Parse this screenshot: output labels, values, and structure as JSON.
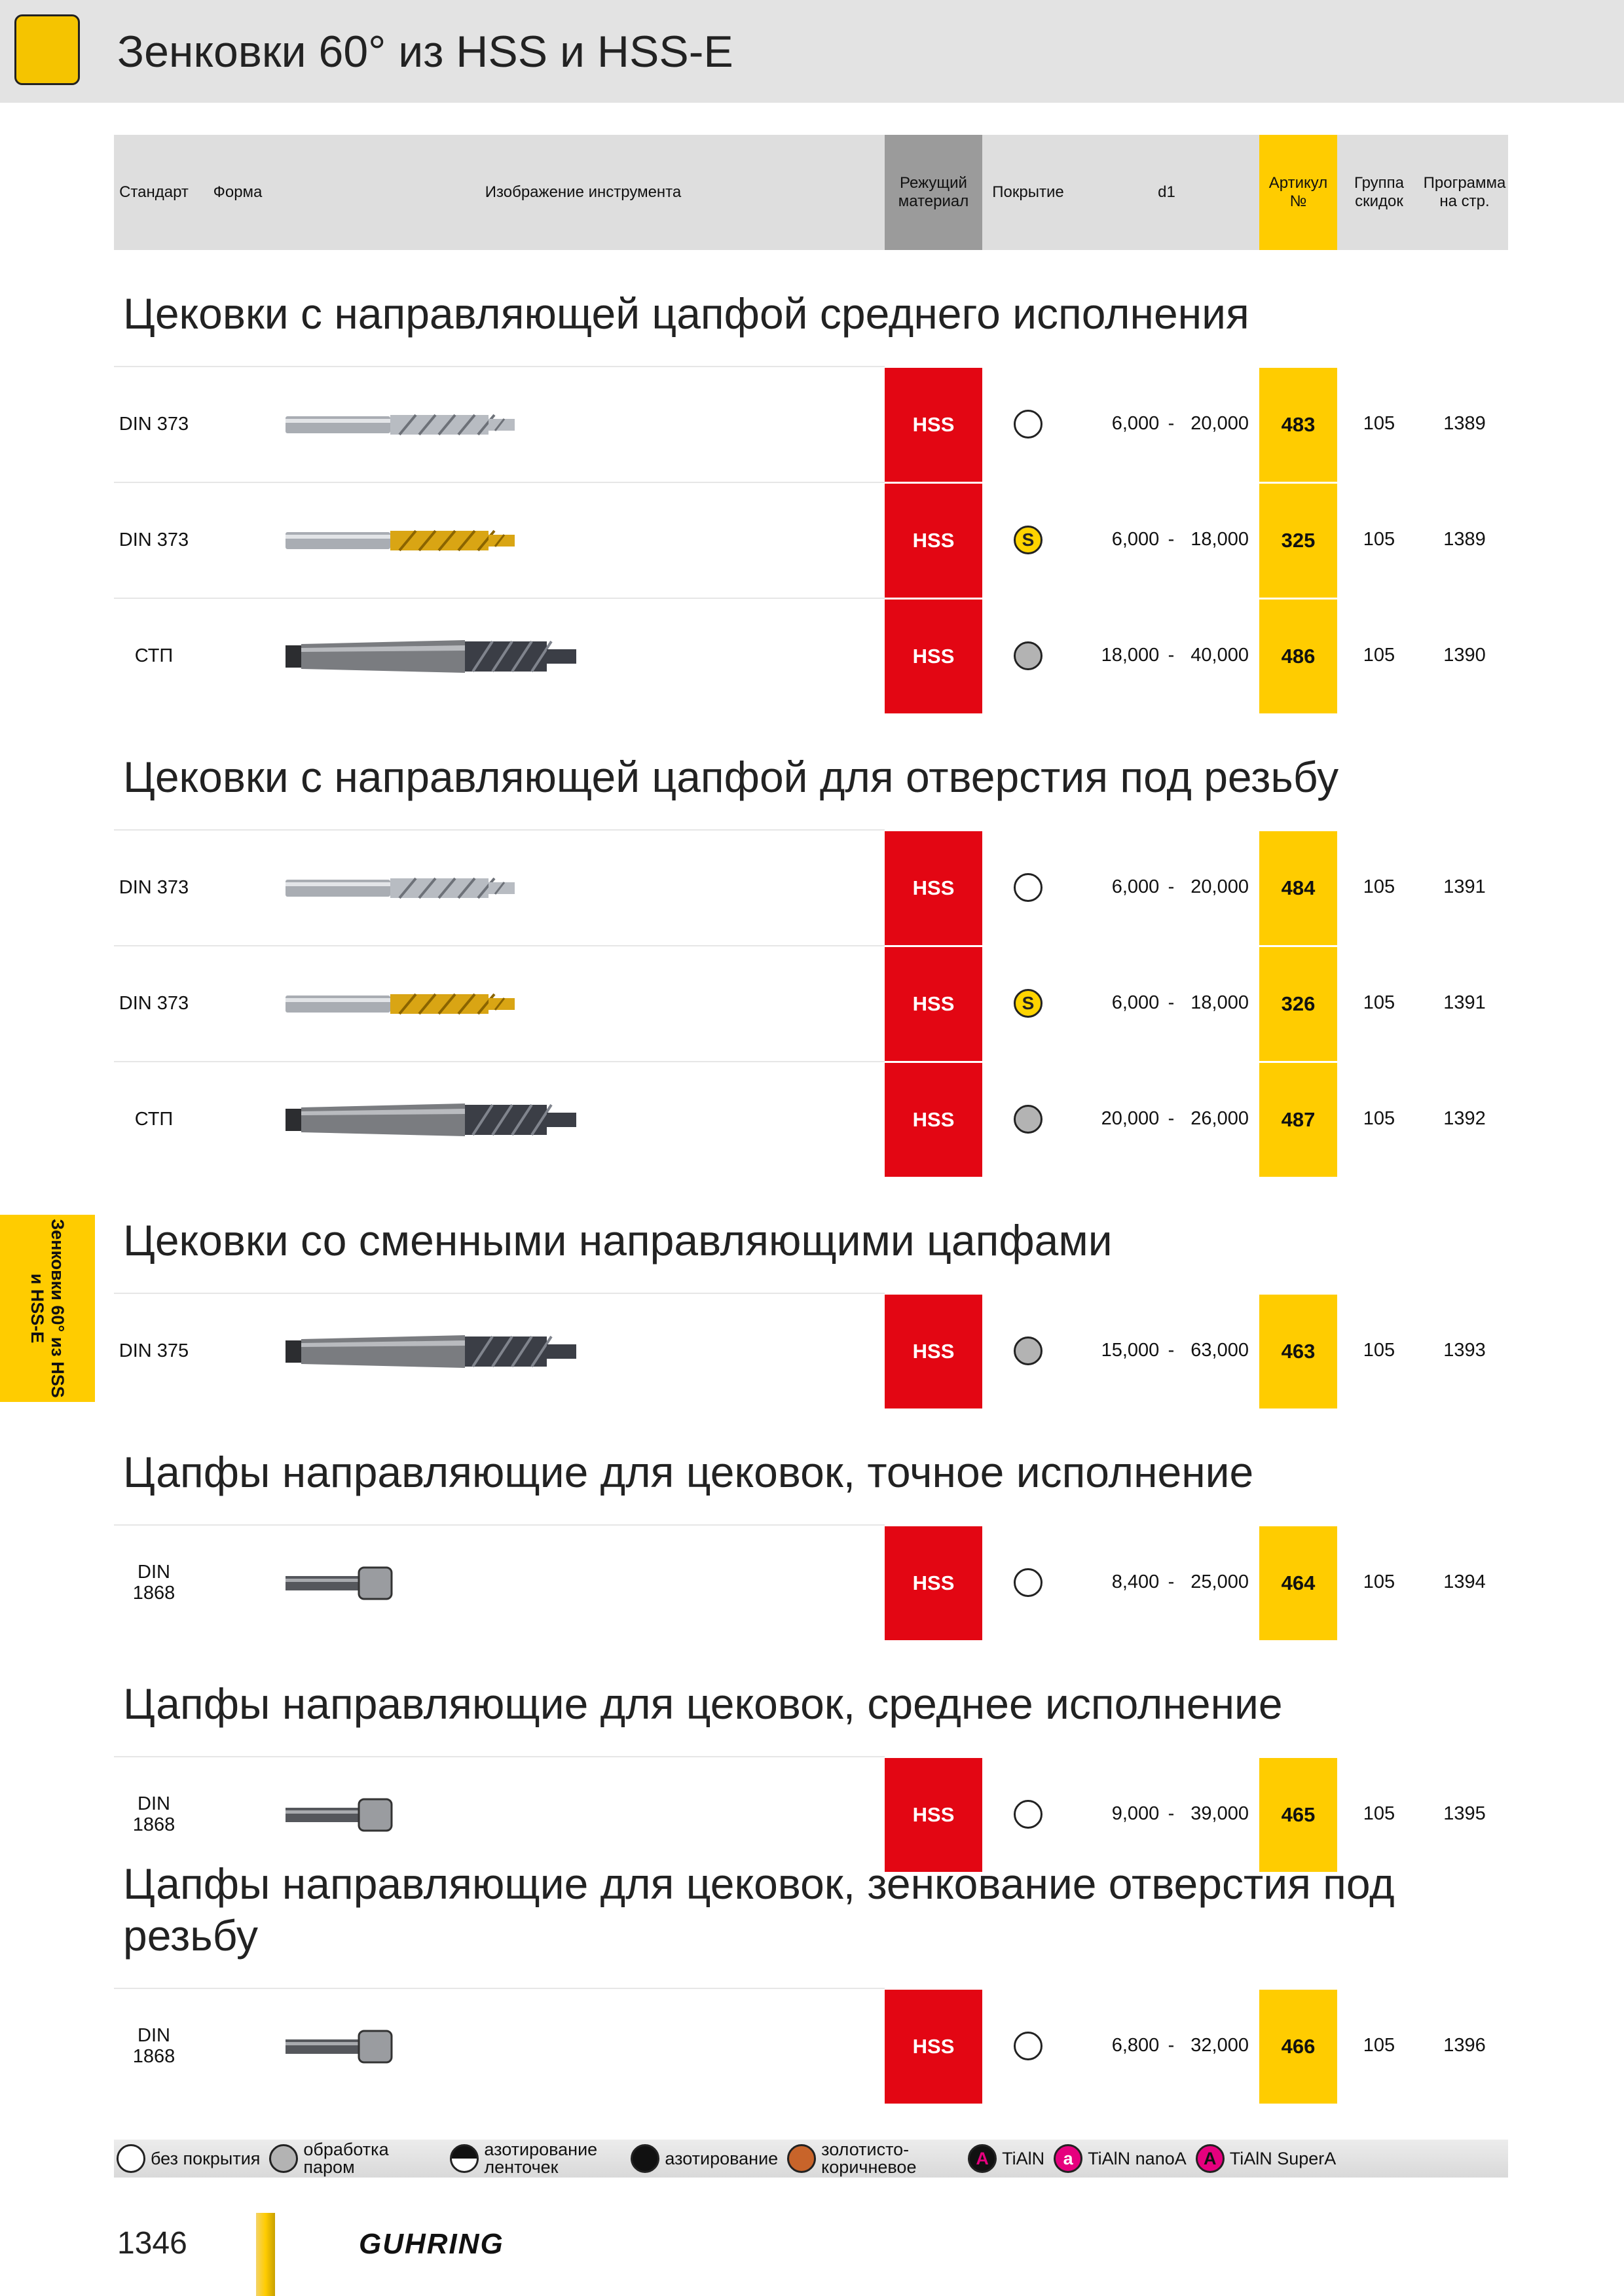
{
  "header": {
    "title": "Зенковки 60° из HSS и HSS-E"
  },
  "columns": [
    "Стандарт",
    "Форма",
    "Изображение инструмента",
    "Режущий материал",
    "Покрытие",
    "d1",
    "Артикул №",
    "Группа скидок",
    "Программа на стр."
  ],
  "range_separator": "-",
  "sections": [
    {
      "title": "Цековки с направляющей цапфой среднего исполнения",
      "rows": [
        {
          "standard": "DIN 373",
          "tool": "straight",
          "material": "HSS",
          "coating": "none",
          "d1": [
            "6,000",
            "20,000"
          ],
          "article": "483",
          "group": "105",
          "page": "1389"
        },
        {
          "standard": "DIN 373",
          "tool": "straight-gold",
          "material": "HSS",
          "coating": "tin",
          "coating_label": "S",
          "d1": [
            "6,000",
            "18,000"
          ],
          "article": "325",
          "group": "105",
          "page": "1389"
        },
        {
          "standard": "СТП",
          "tool": "taper",
          "material": "HSS",
          "coating": "steam",
          "d1": [
            "18,000",
            "40,000"
          ],
          "article": "486",
          "group": "105",
          "page": "1390"
        }
      ]
    },
    {
      "title": "Цековки с направляющей цапфой для отверстия под резьбу",
      "rows": [
        {
          "standard": "DIN 373",
          "tool": "straight",
          "material": "HSS",
          "coating": "none",
          "d1": [
            "6,000",
            "20,000"
          ],
          "article": "484",
          "group": "105",
          "page": "1391"
        },
        {
          "standard": "DIN 373",
          "tool": "straight-gold",
          "material": "HSS",
          "coating": "tin",
          "coating_label": "S",
          "d1": [
            "6,000",
            "18,000"
          ],
          "article": "326",
          "group": "105",
          "page": "1391"
        },
        {
          "standard": "СТП",
          "tool": "taper",
          "material": "HSS",
          "coating": "steam",
          "d1": [
            "20,000",
            "26,000"
          ],
          "article": "487",
          "group": "105",
          "page": "1392"
        }
      ]
    },
    {
      "title": "Цековки со сменными направляющими цапфами",
      "rows": [
        {
          "standard": "DIN 375",
          "tool": "taper",
          "material": "HSS",
          "coating": "steam",
          "d1": [
            "15,000",
            "63,000"
          ],
          "article": "463",
          "group": "105",
          "page": "1393"
        }
      ]
    },
    {
      "title": "Цапфы направляющие для цековок, точное исполнение",
      "rows": [
        {
          "standard": "DIN 1868",
          "tool": "pilot-short",
          "material": "HSS",
          "coating": "none",
          "d1": [
            "8,400",
            "25,000"
          ],
          "article": "464",
          "group": "105",
          "page": "1394"
        }
      ]
    },
    {
      "title": "Цапфы направляющие для цековок, среднее исполнение",
      "rows": [
        {
          "standard": "DIN 1868",
          "tool": "pilot",
          "material": "HSS",
          "coating": "none",
          "d1": [
            "9,000",
            "39,000"
          ],
          "article": "465",
          "group": "105",
          "page": "1395"
        }
      ]
    },
    {
      "title": "Цапфы направляющие для цековок, зенкование отверстия под резьбу",
      "rows": [
        {
          "standard": "DIN 1868",
          "tool": "pilot",
          "material": "HSS",
          "coating": "none",
          "d1": [
            "6,800",
            "32,000"
          ],
          "article": "466",
          "group": "105",
          "page": "1396"
        }
      ]
    }
  ],
  "legend": [
    {
      "symbol": "none",
      "label": "без покрытия"
    },
    {
      "symbol": "steam",
      "label": "обработка паром"
    },
    {
      "symbol": "half",
      "label": "азотирование ленточек"
    },
    {
      "symbol": "nitride",
      "label": "азотирование"
    },
    {
      "symbol": "bronze",
      "label": "золотисто-коричневое"
    },
    {
      "symbol": "tialn",
      "letter": "A",
      "label": "TiAlN"
    },
    {
      "symbol": "nano",
      "letter": "a",
      "label": "TiAlN nanoA"
    },
    {
      "symbol": "supera",
      "letter": "A",
      "label": "TiAlN SuperA"
    }
  ],
  "side_tab": "Зенковки 60° из HSS и HSS-E",
  "footer": {
    "page_number": "1346",
    "brand": "GUHRING"
  }
}
